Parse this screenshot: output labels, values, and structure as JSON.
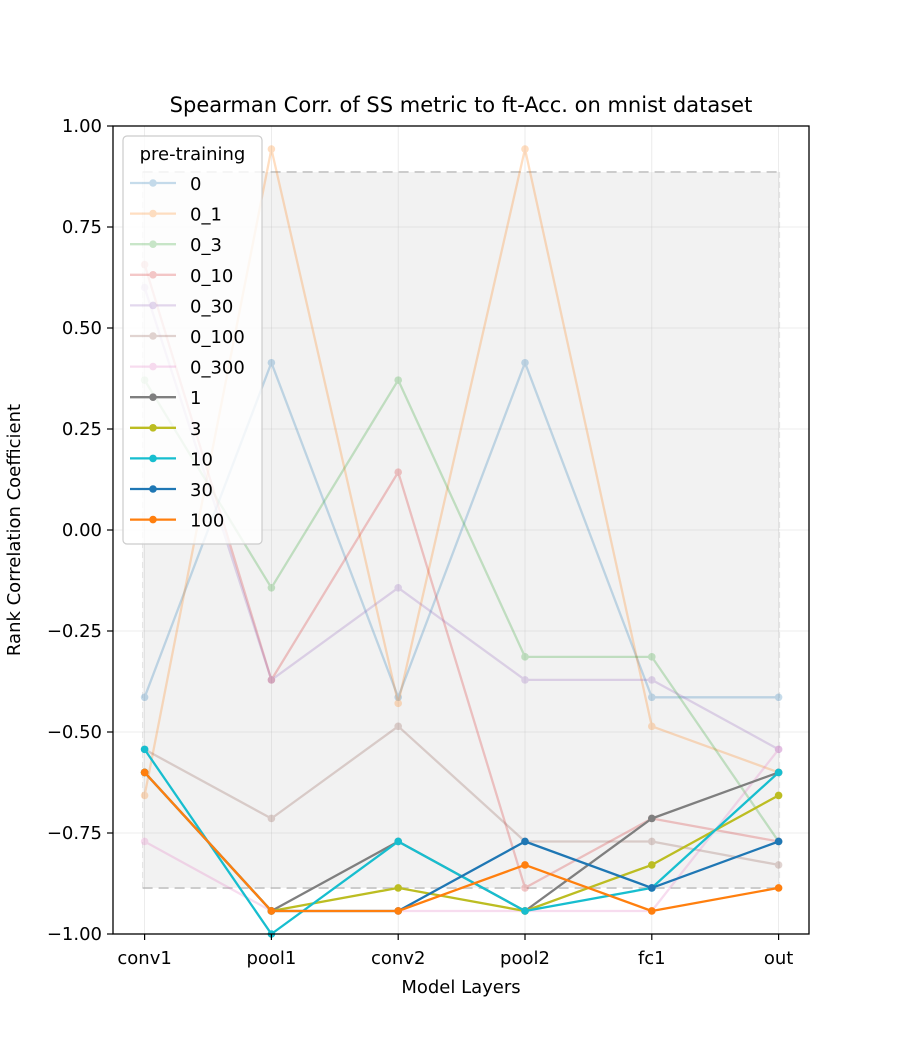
{
  "chart_data": {
    "type": "line",
    "title": "Spearman Corr. of SS metric to ft-Acc. on mnist dataset",
    "xlabel": "Model Layers",
    "ylabel": "Rank Correlation Coefficient",
    "categories": [
      "conv1",
      "pool1",
      "conv2",
      "pool2",
      "fc1",
      "out"
    ],
    "ylim": [
      -1.0,
      1.0
    ],
    "yticks": [
      -1.0,
      -0.75,
      -0.5,
      -0.25,
      0.0,
      0.25,
      0.5,
      0.75,
      1.0
    ],
    "ytick_labels": [
      "−1.00",
      "−0.75",
      "−0.50",
      "−0.25",
      "0.00",
      "0.25",
      "0.50",
      "0.75",
      "1.00"
    ],
    "grid": true,
    "band": {
      "low": -0.886,
      "high": 0.886,
      "color": "#f2f2f2",
      "border": "#cccccc"
    },
    "legend": {
      "title": "pre-training",
      "position": "top-left"
    },
    "series": [
      {
        "name": "0",
        "color": "#1f77b4",
        "faded": true,
        "values": [
          -0.414,
          0.414,
          -0.414,
          0.414,
          -0.414,
          -0.414
        ]
      },
      {
        "name": "0_1",
        "color": "#ff7f0e",
        "faded": true,
        "values": [
          -0.657,
          0.943,
          -0.429,
          0.943,
          -0.486,
          -0.6
        ]
      },
      {
        "name": "0_3",
        "color": "#2ca02c",
        "faded": true,
        "values": [
          0.371,
          -0.143,
          0.371,
          -0.314,
          -0.314,
          -0.771
        ]
      },
      {
        "name": "0_10",
        "color": "#d62728",
        "faded": true,
        "values": [
          0.657,
          -0.371,
          0.143,
          -0.886,
          -0.714,
          -0.771
        ]
      },
      {
        "name": "0_30",
        "color": "#9467bd",
        "faded": true,
        "values": [
          0.6,
          -0.371,
          -0.143,
          -0.371,
          -0.371,
          -0.543
        ]
      },
      {
        "name": "0_100",
        "color": "#8c564b",
        "faded": true,
        "values": [
          -0.543,
          -0.714,
          -0.486,
          -0.771,
          -0.771,
          -0.829
        ]
      },
      {
        "name": "0_300",
        "color": "#e377c2",
        "faded": true,
        "values": [
          -0.771,
          -0.943,
          -0.943,
          -0.943,
          -0.943,
          -0.543
        ]
      },
      {
        "name": "1",
        "color": "#7f7f7f",
        "faded": false,
        "values": [
          -0.6,
          -0.943,
          -0.771,
          -0.943,
          -0.714,
          -0.6
        ]
      },
      {
        "name": "3",
        "color": "#bcbd22",
        "faded": false,
        "values": [
          -0.6,
          -0.943,
          -0.886,
          -0.943,
          -0.829,
          -0.657
        ]
      },
      {
        "name": "10",
        "color": "#17becf",
        "faded": false,
        "values": [
          -0.543,
          -1.0,
          -0.771,
          -0.943,
          -0.886,
          -0.6
        ]
      },
      {
        "name": "30",
        "color": "#1f77b4",
        "faded": false,
        "values": [
          -0.6,
          -0.943,
          -0.943,
          -0.771,
          -0.886,
          -0.771
        ]
      },
      {
        "name": "100",
        "color": "#ff7f0e",
        "faded": false,
        "values": [
          -0.6,
          -0.943,
          -0.943,
          -0.829,
          -0.943,
          -0.886
        ]
      }
    ]
  }
}
